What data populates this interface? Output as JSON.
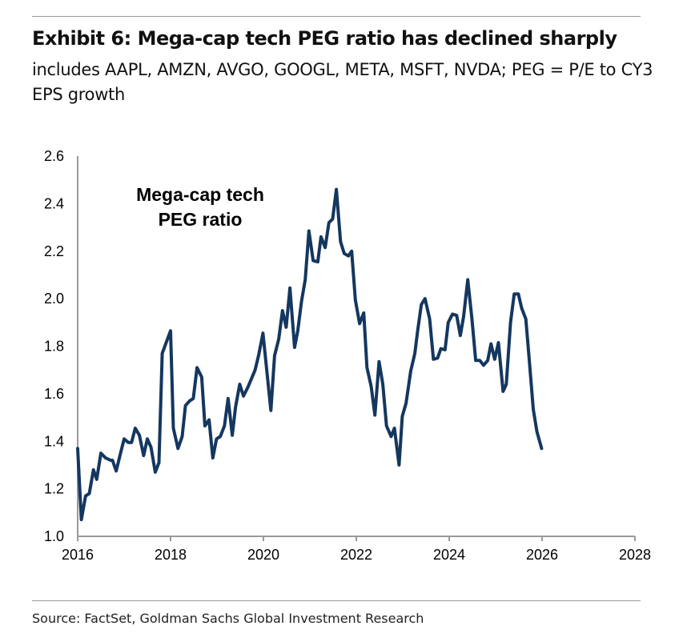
{
  "title": "Exhibit 6: Mega-cap tech PEG ratio has declined sharply",
  "subtitle": "includes AAPL, AMZN, AVGO, GOOGL, META, MSFT, NVDA; PEG = P/E to CY3 EPS growth",
  "source": "Source: FactSet, Goldman Sachs Global Investment Research",
  "chart_data": {
    "type": "line",
    "title": "Exhibit 6: Mega-cap tech PEG ratio has declined sharply",
    "annotation": [
      "Mega-cap tech",
      "PEG ratio"
    ],
    "xlabel": "",
    "ylabel": "",
    "xlim": [
      2016,
      2028
    ],
    "ylim": [
      1.0,
      2.6
    ],
    "xticks": [
      "2016",
      "2018",
      "2020",
      "2022",
      "2024",
      "2026",
      "2028"
    ],
    "yticks": [
      "1.0",
      "1.2",
      "1.4",
      "1.6",
      "1.8",
      "2.0",
      "2.2",
      "2.4",
      "2.6"
    ],
    "grid": false,
    "line_color": "#14375f",
    "series": [
      {
        "name": "Mega-cap tech PEG ratio",
        "x": [
          2016.0,
          2016.08,
          2016.17,
          2016.25,
          2016.34,
          2016.41,
          2016.5,
          2016.6,
          2016.71,
          2016.75,
          2016.83,
          2016.91,
          2017.0,
          2017.09,
          2017.16,
          2017.24,
          2017.33,
          2017.42,
          2017.5,
          2017.58,
          2017.67,
          2017.75,
          2017.82,
          2018.0,
          2018.06,
          2018.16,
          2018.25,
          2018.32,
          2018.41,
          2018.49,
          2018.57,
          2018.67,
          2018.74,
          2018.83,
          2018.91,
          2018.99,
          2019.07,
          2019.16,
          2019.24,
          2019.33,
          2019.4,
          2019.49,
          2019.57,
          2019.67,
          2019.82,
          2019.9,
          2019.99,
          2020.16,
          2020.24,
          2020.33,
          2020.41,
          2020.49,
          2020.57,
          2020.67,
          2020.74,
          2020.82,
          2020.9,
          2020.98,
          2021.07,
          2021.17,
          2021.24,
          2021.33,
          2021.41,
          2021.49,
          2021.57,
          2021.66,
          2021.74,
          2021.83,
          2021.9,
          2021.98,
          2022.07,
          2022.16,
          2022.23,
          2022.32,
          2022.4,
          2022.49,
          2022.57,
          2022.65,
          2022.75,
          2022.82,
          2022.92,
          2022.99,
          2023.07,
          2023.17,
          2023.26,
          2023.32,
          2023.4,
          2023.48,
          2023.58,
          2023.66,
          2023.75,
          2023.82,
          2023.91,
          2023.98,
          2024.07,
          2024.16,
          2024.24,
          2024.31,
          2024.4,
          2024.49,
          2024.57,
          2024.66,
          2024.74,
          2024.83,
          2024.9,
          2024.98,
          2025.06,
          2025.16,
          2025.23,
          2025.32,
          2025.4,
          2025.49,
          2025.56,
          2025.65,
          2025.73,
          2025.81,
          2025.89,
          2025.99
        ],
        "values": [
          1.37,
          1.07,
          1.17,
          1.18,
          1.28,
          1.24,
          1.35,
          1.33,
          1.32,
          1.32,
          1.275,
          1.34,
          1.41,
          1.395,
          1.395,
          1.455,
          1.425,
          1.34,
          1.41,
          1.375,
          1.27,
          1.31,
          1.77,
          1.865,
          1.455,
          1.37,
          1.42,
          1.55,
          1.57,
          1.58,
          1.71,
          1.67,
          1.465,
          1.49,
          1.33,
          1.41,
          1.42,
          1.465,
          1.58,
          1.425,
          1.545,
          1.64,
          1.59,
          1.63,
          1.7,
          1.765,
          1.855,
          1.53,
          1.76,
          1.83,
          1.95,
          1.88,
          2.045,
          1.795,
          1.865,
          1.99,
          2.08,
          2.285,
          2.16,
          2.155,
          2.26,
          2.215,
          2.32,
          2.335,
          2.46,
          2.24,
          2.19,
          2.18,
          2.2,
          1.995,
          1.895,
          1.94,
          1.71,
          1.63,
          1.51,
          1.735,
          1.64,
          1.465,
          1.42,
          1.455,
          1.3,
          1.505,
          1.56,
          1.695,
          1.77,
          1.865,
          1.975,
          2.0,
          1.915,
          1.745,
          1.75,
          1.79,
          1.785,
          1.9,
          1.935,
          1.93,
          1.845,
          1.925,
          2.08,
          1.915,
          1.74,
          1.74,
          1.72,
          1.74,
          1.81,
          1.745,
          1.815,
          1.61,
          1.64,
          1.9,
          2.02,
          2.02,
          1.96,
          1.915,
          1.73,
          1.535,
          1.44,
          1.37
        ]
      }
    ]
  }
}
